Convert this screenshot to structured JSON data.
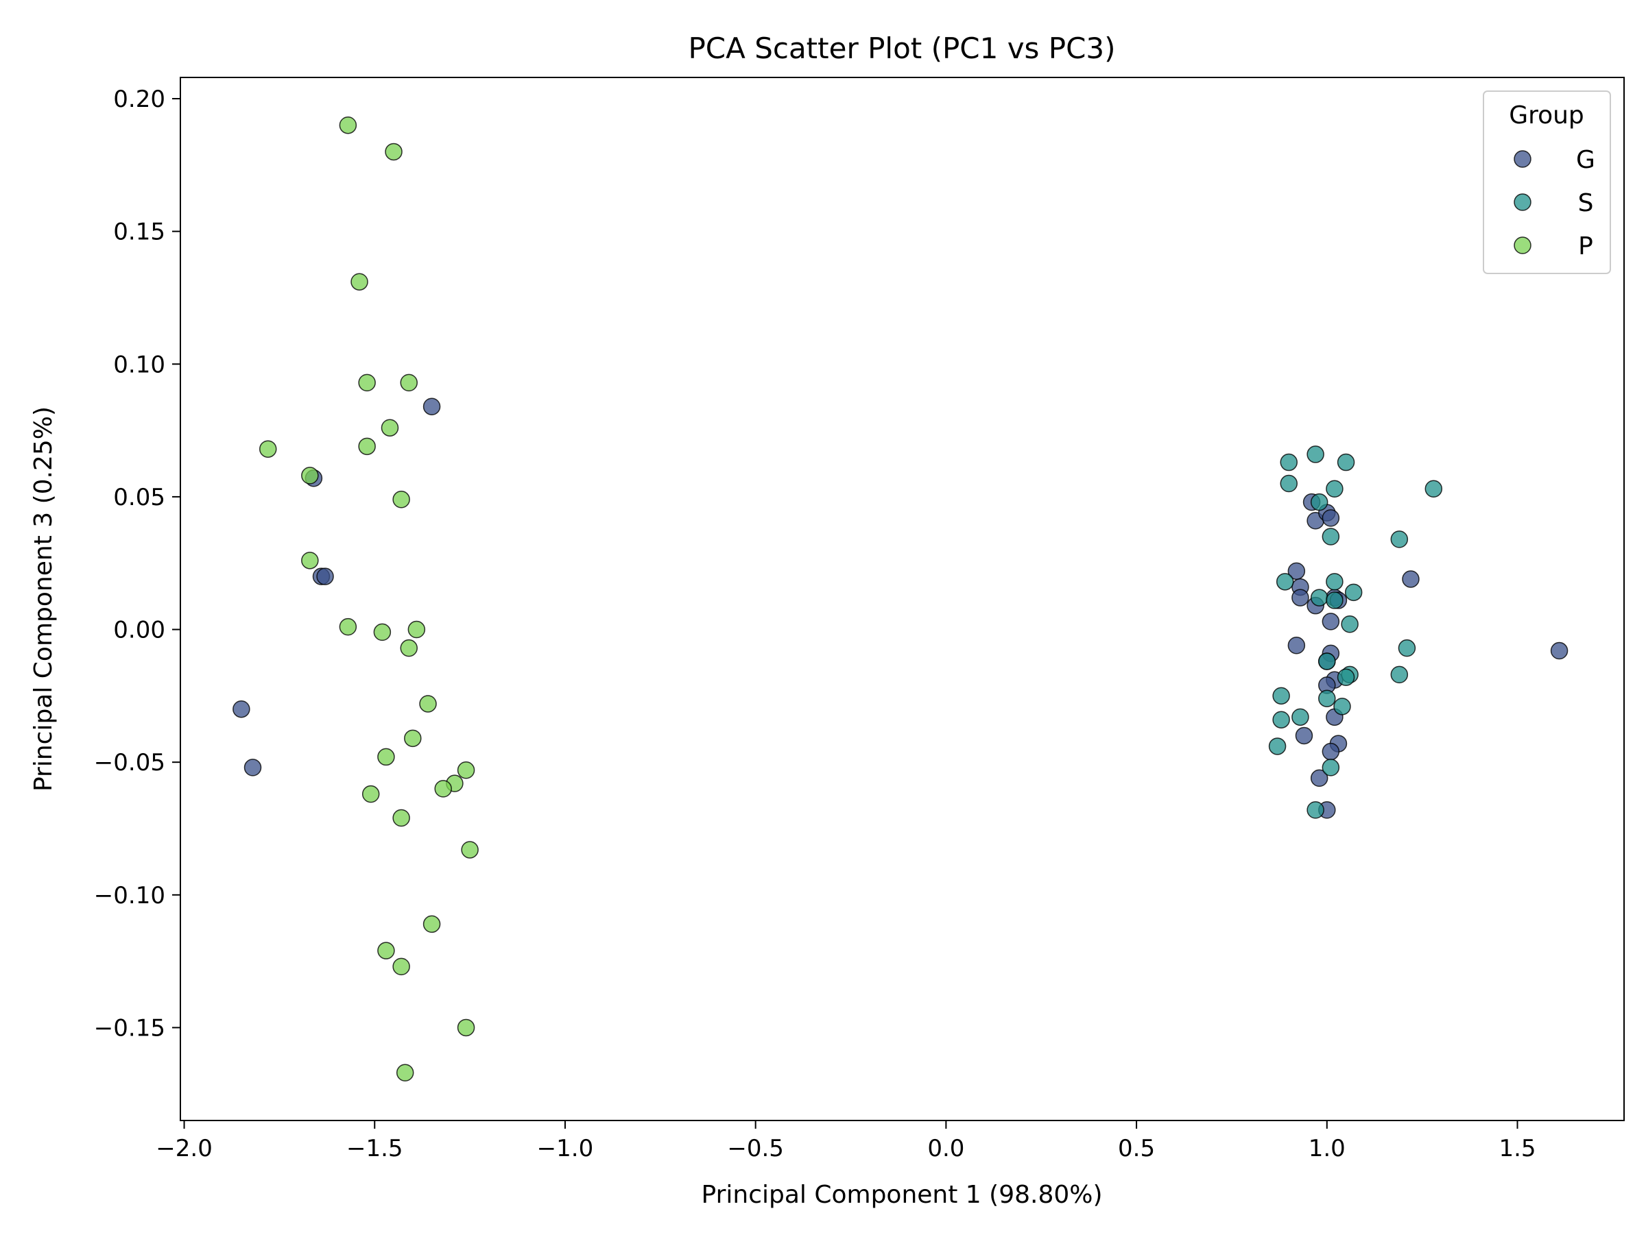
{
  "chart_data": {
    "type": "scatter",
    "title": "PCA Scatter Plot (PC1 vs PC3)",
    "xlabel": "Principal Component 1 (98.80%)",
    "ylabel": "Principal Component 3 (0.25%)",
    "xlim": [
      -2.01,
      1.78
    ],
    "ylim": [
      -0.185,
      0.208
    ],
    "xticks": [
      {
        "value": -2.0,
        "label": "−2.0"
      },
      {
        "value": -1.5,
        "label": "−1.5"
      },
      {
        "value": -1.0,
        "label": "−1.0"
      },
      {
        "value": -0.5,
        "label": "−0.5"
      },
      {
        "value": 0.0,
        "label": "0.0"
      },
      {
        "value": 0.5,
        "label": "0.5"
      },
      {
        "value": 1.0,
        "label": "1.0"
      },
      {
        "value": 1.5,
        "label": "1.5"
      }
    ],
    "yticks": [
      {
        "value": 0.2,
        "label": "0.20"
      },
      {
        "value": 0.15,
        "label": "0.15"
      },
      {
        "value": 0.1,
        "label": "0.10"
      },
      {
        "value": 0.05,
        "label": "0.05"
      },
      {
        "value": 0.0,
        "label": "0.00"
      },
      {
        "value": -0.05,
        "label": "−0.05"
      },
      {
        "value": -0.1,
        "label": "−0.10"
      },
      {
        "value": -0.15,
        "label": "−0.15"
      }
    ],
    "grid": false,
    "legend": {
      "title": "Group",
      "position": "top-right"
    },
    "series": [
      {
        "name": "G",
        "color": "#3b528b",
        "points": [
          [
            -1.35,
            0.084
          ],
          [
            -1.66,
            0.057
          ],
          [
            -1.64,
            0.02
          ],
          [
            -1.63,
            0.02
          ],
          [
            -1.85,
            -0.03
          ],
          [
            -1.82,
            -0.052
          ],
          [
            0.96,
            0.048
          ],
          [
            0.97,
            0.041
          ],
          [
            1.0,
            0.044
          ],
          [
            1.01,
            0.042
          ],
          [
            0.92,
            0.022
          ],
          [
            0.93,
            0.016
          ],
          [
            0.93,
            0.012
          ],
          [
            0.97,
            0.009
          ],
          [
            1.02,
            0.012
          ],
          [
            1.03,
            0.011
          ],
          [
            1.01,
            0.003
          ],
          [
            1.22,
            0.019
          ],
          [
            0.92,
            -0.006
          ],
          [
            1.01,
            -0.009
          ],
          [
            1.0,
            -0.012
          ],
          [
            1.02,
            -0.019
          ],
          [
            1.0,
            -0.021
          ],
          [
            1.02,
            -0.033
          ],
          [
            0.94,
            -0.04
          ],
          [
            1.03,
            -0.043
          ],
          [
            1.01,
            -0.046
          ],
          [
            0.98,
            -0.056
          ],
          [
            1.0,
            -0.068
          ],
          [
            1.61,
            -0.008
          ]
        ]
      },
      {
        "name": "S",
        "color": "#21918c",
        "points": [
          [
            0.9,
            0.063
          ],
          [
            0.97,
            0.066
          ],
          [
            1.05,
            0.063
          ],
          [
            0.9,
            0.055
          ],
          [
            1.02,
            0.053
          ],
          [
            0.98,
            0.048
          ],
          [
            1.28,
            0.053
          ],
          [
            1.01,
            0.035
          ],
          [
            1.19,
            0.034
          ],
          [
            0.89,
            0.018
          ],
          [
            1.02,
            0.018
          ],
          [
            0.98,
            0.012
          ],
          [
            1.02,
            0.011
          ],
          [
            1.07,
            0.014
          ],
          [
            1.06,
            0.002
          ],
          [
            1.0,
            -0.012
          ],
          [
            1.21,
            -0.007
          ],
          [
            1.06,
            -0.017
          ],
          [
            1.05,
            -0.018
          ],
          [
            1.19,
            -0.017
          ],
          [
            0.88,
            -0.025
          ],
          [
            1.0,
            -0.026
          ],
          [
            1.04,
            -0.029
          ],
          [
            0.88,
            -0.034
          ],
          [
            0.93,
            -0.033
          ],
          [
            0.87,
            -0.044
          ],
          [
            1.01,
            -0.052
          ],
          [
            0.97,
            -0.068
          ]
        ]
      },
      {
        "name": "P",
        "color": "#7ad151",
        "points": [
          [
            -1.57,
            0.19
          ],
          [
            -1.45,
            0.18
          ],
          [
            -1.54,
            0.131
          ],
          [
            -1.52,
            0.093
          ],
          [
            -1.41,
            0.093
          ],
          [
            -1.46,
            0.076
          ],
          [
            -1.52,
            0.069
          ],
          [
            -1.78,
            0.068
          ],
          [
            -1.67,
            0.058
          ],
          [
            -1.43,
            0.049
          ],
          [
            -1.67,
            0.026
          ],
          [
            -1.57,
            0.001
          ],
          [
            -1.48,
            -0.001
          ],
          [
            -1.39,
            0.0
          ],
          [
            -1.41,
            -0.007
          ],
          [
            -1.36,
            -0.028
          ],
          [
            -1.4,
            -0.041
          ],
          [
            -1.47,
            -0.048
          ],
          [
            -1.26,
            -0.053
          ],
          [
            -1.29,
            -0.058
          ],
          [
            -1.32,
            -0.06
          ],
          [
            -1.51,
            -0.062
          ],
          [
            -1.43,
            -0.071
          ],
          [
            -1.25,
            -0.083
          ],
          [
            -1.35,
            -0.111
          ],
          [
            -1.47,
            -0.121
          ],
          [
            -1.43,
            -0.127
          ],
          [
            -1.26,
            -0.15
          ],
          [
            -1.42,
            -0.167
          ]
        ]
      }
    ]
  }
}
